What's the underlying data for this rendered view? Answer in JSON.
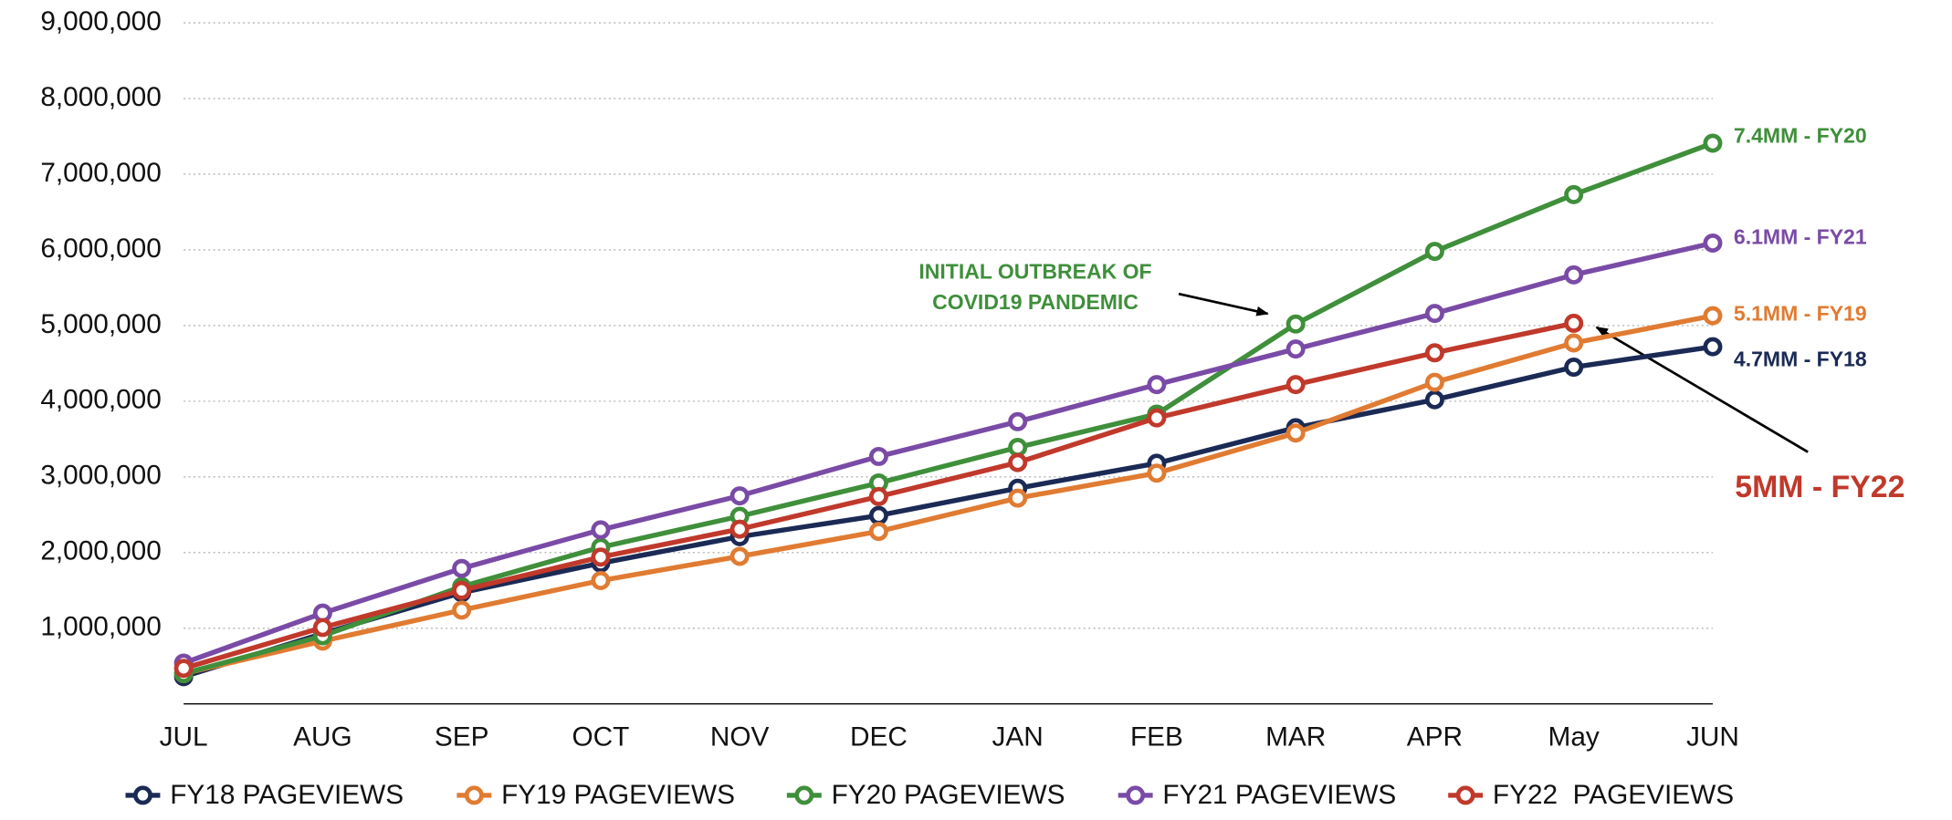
{
  "chart_data": {
    "type": "line",
    "categories": [
      "JUL",
      "AUG",
      "SEP",
      "OCT",
      "NOV",
      "DEC",
      "JAN",
      "FEB",
      "MAR",
      "APR",
      "May",
      "JUN"
    ],
    "ylim": [
      0,
      9000000
    ],
    "yticks": [
      {
        "value": 1000000,
        "label": "1,000,000"
      },
      {
        "value": 2000000,
        "label": "2,000,000"
      },
      {
        "value": 3000000,
        "label": "3,000,000"
      },
      {
        "value": 4000000,
        "label": "4,000,000"
      },
      {
        "value": 5000000,
        "label": "5,000,000"
      },
      {
        "value": 6000000,
        "label": "6,000,000"
      },
      {
        "value": 7000000,
        "label": "7,000,000"
      },
      {
        "value": 8000000,
        "label": "8,000,000"
      },
      {
        "value": 9000000,
        "label": "9,000,000"
      }
    ],
    "grid": true,
    "legend": "bottom",
    "series": [
      {
        "name": "FY18 PAGEVIEWS",
        "color": "#1b2a55",
        "values": [
          360000,
          930000,
          1470000,
          1860000,
          2210000,
          2490000,
          2850000,
          3180000,
          3650000,
          4020000,
          4450000,
          4720000
        ]
      },
      {
        "name": "FY19 PAGEVIEWS",
        "color": "#e07b32",
        "values": [
          400000,
          830000,
          1240000,
          1630000,
          1950000,
          2280000,
          2720000,
          3050000,
          3580000,
          4250000,
          4770000,
          5130000
        ]
      },
      {
        "name": "FY20 PAGEVIEWS",
        "color": "#3f8f3b",
        "values": [
          400000,
          900000,
          1550000,
          2070000,
          2480000,
          2920000,
          3390000,
          3830000,
          5020000,
          5980000,
          6730000,
          7410000
        ]
      },
      {
        "name": "FY21 PAGEVIEWS",
        "color": "#7a4ba6",
        "values": [
          540000,
          1200000,
          1790000,
          2300000,
          2750000,
          3270000,
          3730000,
          4220000,
          4690000,
          5160000,
          5670000,
          6090000
        ]
      },
      {
        "name": "FY22  PAGEVIEWS",
        "color": "#c0392b",
        "values": [
          470000,
          1010000,
          1500000,
          1940000,
          2310000,
          2740000,
          3190000,
          3780000,
          4220000,
          4640000,
          5030000,
          null
        ]
      }
    ],
    "annotations": [
      {
        "text": "7.4MM - FY20",
        "color": "#3f8f3b"
      },
      {
        "text": "6.1MM - FY21",
        "color": "#7a4ba6"
      },
      {
        "text": "5.1MM - FY19",
        "color": "#e07b32"
      },
      {
        "text": "4.7MM - FY18",
        "color": "#1b2a55"
      },
      {
        "text": "5MM - FY22",
        "color": "#c0392b"
      },
      {
        "text": "INITIAL OUTBREAK OF",
        "color": "#3f8f3b"
      },
      {
        "text": "COVID19 PANDEMIC",
        "color": "#3f8f3b"
      }
    ]
  }
}
